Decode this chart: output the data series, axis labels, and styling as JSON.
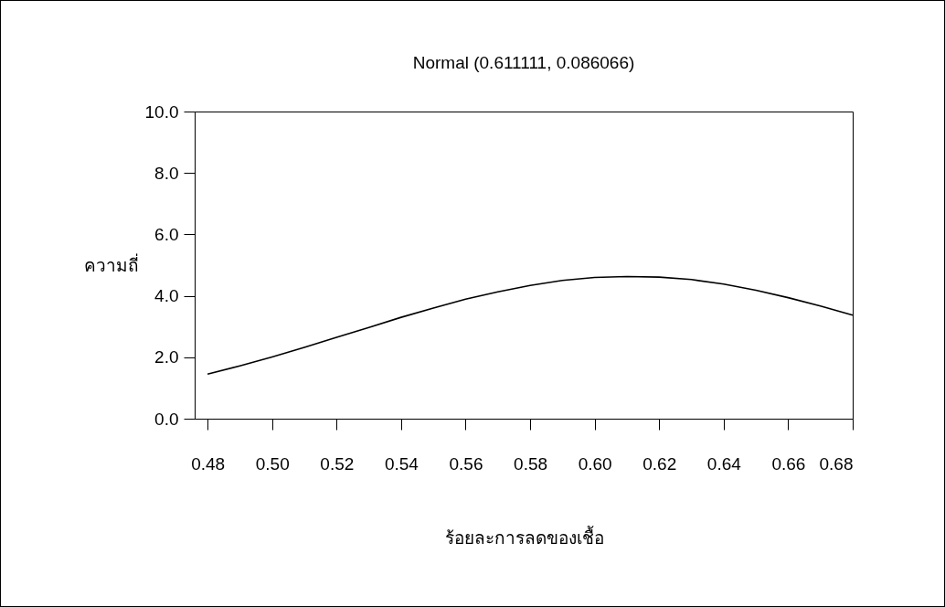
{
  "chart_data": {
    "type": "line",
    "title": "Normal (0.611111, 0.086066)",
    "xlabel": "ร้อยละการลดของเชื้อ",
    "ylabel": "ความถี่",
    "x": [
      0.48,
      0.49,
      0.5,
      0.51,
      0.52,
      0.53,
      0.54,
      0.55,
      0.56,
      0.57,
      0.58,
      0.59,
      0.6,
      0.61,
      0.62,
      0.63,
      0.64,
      0.65,
      0.66,
      0.67,
      0.68
    ],
    "series": [
      {
        "color": "#000000",
        "values": [
          1.45,
          1.72,
          2.01,
          2.32,
          2.65,
          2.97,
          3.3,
          3.6,
          3.89,
          4.13,
          4.34,
          4.5,
          4.6,
          4.63,
          4.61,
          4.53,
          4.38,
          4.18,
          3.94,
          3.67,
          3.37
        ]
      }
    ],
    "xlim": [
      0.476,
      0.68
    ],
    "ylim": [
      0,
      10
    ],
    "xticks": [
      {
        "value": 0.48,
        "label": "0.48"
      },
      {
        "value": 0.5,
        "label": "0.50"
      },
      {
        "value": 0.52,
        "label": "0.52"
      },
      {
        "value": 0.54,
        "label": "0.54"
      },
      {
        "value": 0.56,
        "label": "0.56"
      },
      {
        "value": 0.58,
        "label": "0.58"
      },
      {
        "value": 0.6,
        "label": "0.60"
      },
      {
        "value": 0.62,
        "label": "0.62"
      },
      {
        "value": 0.64,
        "label": "0.64"
      },
      {
        "value": 0.66,
        "label": "0.66"
      },
      {
        "value": 0.68,
        "label": "0.68"
      }
    ],
    "yticks": [
      {
        "value": 0,
        "label": "0.0"
      },
      {
        "value": 2,
        "label": "2.0"
      },
      {
        "value": 4,
        "label": "4.0"
      },
      {
        "value": 6,
        "label": "6.0"
      },
      {
        "value": 8,
        "label": "8.0"
      },
      {
        "value": 10,
        "label": "10.0"
      }
    ],
    "grid": false,
    "line_style": "solid"
  }
}
